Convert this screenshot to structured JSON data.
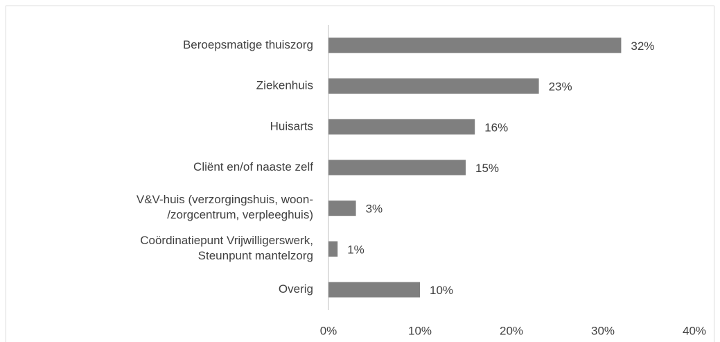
{
  "chart_data": {
    "type": "bar",
    "orientation": "horizontal",
    "categories": [
      "Beroepsmatige thuiszorg",
      "Ziekenhuis",
      "Huisarts",
      "Cliënt en/of naaste zelf",
      "V&V-huis (verzorgingshuis, woon-\n/zorgcentrum, verpleeghuis)",
      "Coördinatiepunt Vrijwilligerswerk,\nSteunpunt mantelzorg",
      "Overig"
    ],
    "values": [
      32,
      23,
      16,
      15,
      3,
      1,
      10
    ],
    "value_labels": [
      "32%",
      "23%",
      "16%",
      "15%",
      "3%",
      "1%",
      "10%"
    ],
    "color": "#7f7f7f",
    "xlim": [
      0,
      40
    ],
    "xticks": [
      {
        "value": 0,
        "label": "0%"
      },
      {
        "value": 10,
        "label": "10%"
      },
      {
        "value": 20,
        "label": "20%"
      },
      {
        "value": 30,
        "label": "30%"
      },
      {
        "value": 40,
        "label": "40%"
      }
    ],
    "grid": false
  }
}
